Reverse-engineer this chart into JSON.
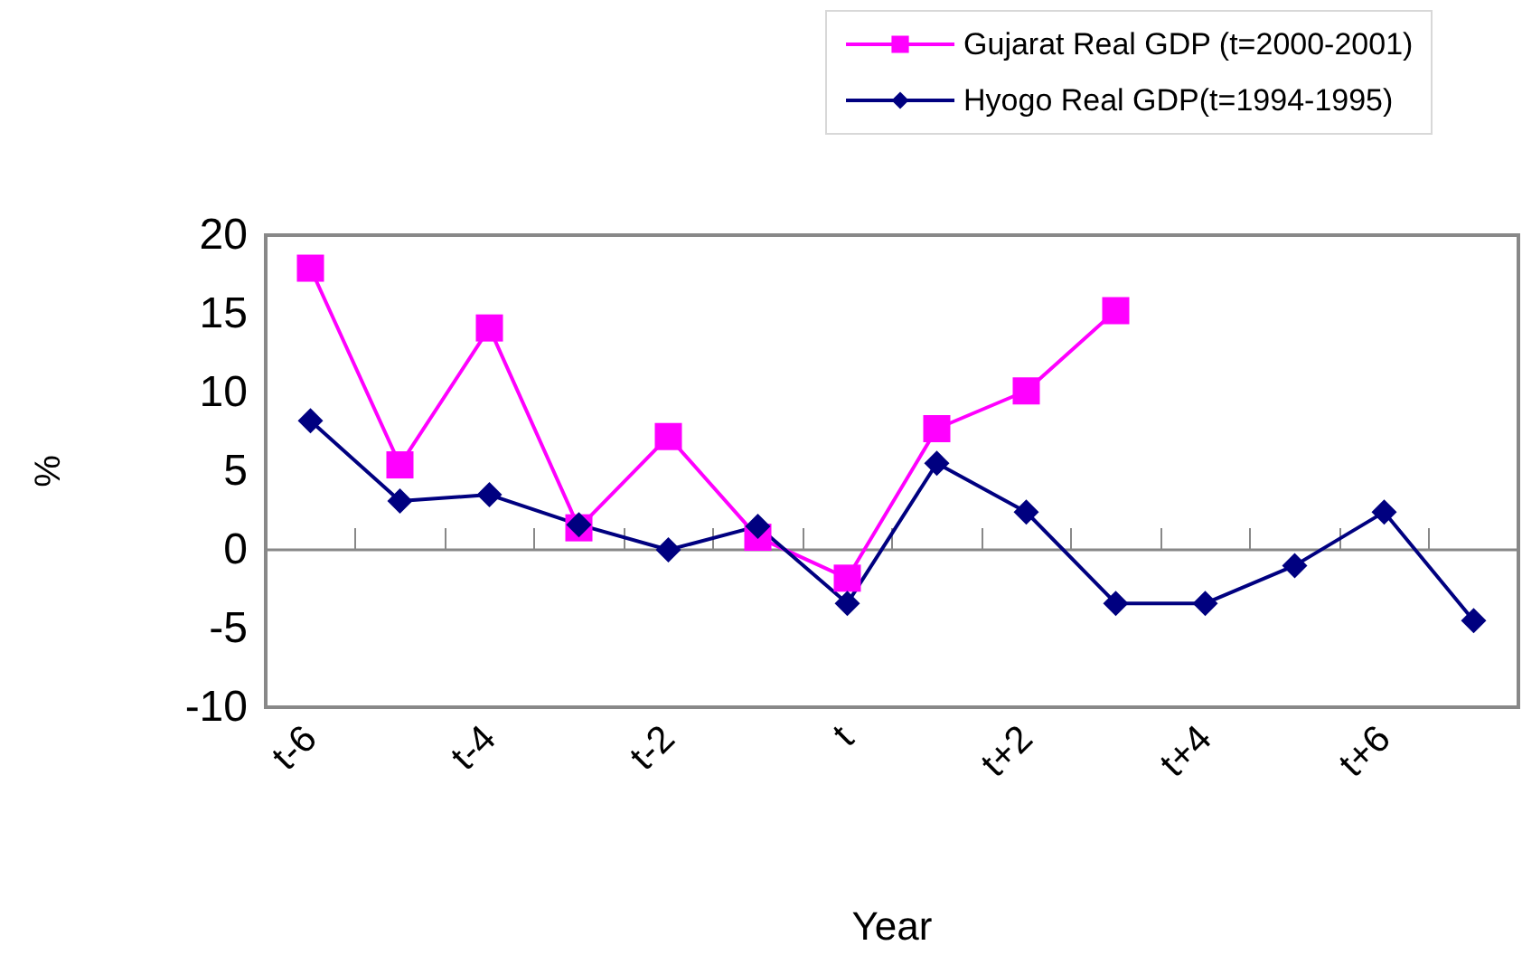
{
  "chart_data": {
    "type": "line",
    "xlabel": "Year",
    "ylabel": "%",
    "categories": [
      "t-6",
      null,
      "t-4",
      null,
      "t-2",
      null,
      "t",
      null,
      "t+2",
      null,
      "t+4",
      null,
      "t+6",
      null
    ],
    "series": [
      {
        "name": "Gujarat Real GDP (t=2000-2001)",
        "color": "#ff00ff",
        "marker": "square",
        "values": [
          17.9,
          5.4,
          14.1,
          1.4,
          7.2,
          0.8,
          -1.8,
          7.7,
          10.1,
          15.2,
          null,
          null,
          null,
          null
        ]
      },
      {
        "name": "Hyogo Real GDP(t=1994-1995)",
        "color": "#000080",
        "marker": "diamond",
        "values": [
          8.2,
          3.1,
          3.5,
          1.6,
          0,
          1.5,
          -3.4,
          5.5,
          2.4,
          -3.4,
          -3.4,
          -1.0,
          2.4,
          -4.5
        ]
      }
    ],
    "ylim": [
      -10,
      20
    ],
    "yticks": [
      -10,
      -5,
      0,
      5,
      10,
      15,
      20
    ],
    "legend": "top right",
    "line_style": "solid"
  }
}
